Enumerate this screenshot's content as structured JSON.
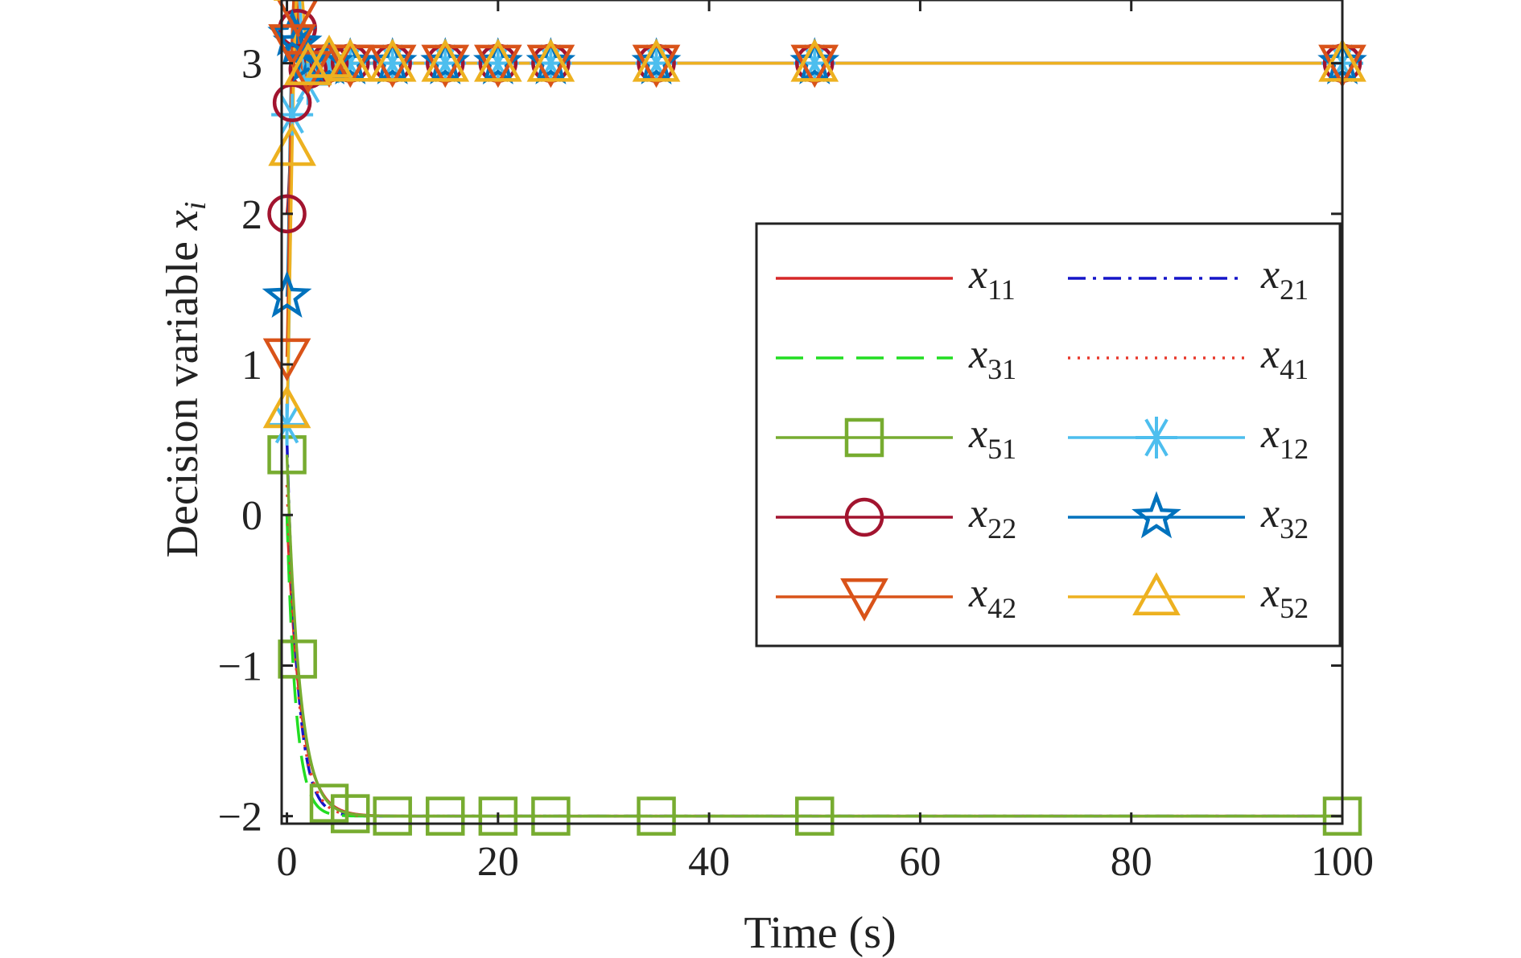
{
  "chart_data": {
    "type": "line",
    "xlabel": "Time (s)",
    "ylabel_main": "Decision variable ",
    "ylabel_var": "x",
    "ylabel_sub": "i",
    "xlim": [
      -0.5,
      100
    ],
    "ylim": [
      -2.05,
      3.42
    ],
    "xticks": [
      0,
      20,
      40,
      60,
      80,
      100
    ],
    "yticks": [
      -2,
      -1,
      0,
      1,
      2,
      3
    ],
    "xtick_labels": [
      "0",
      "20",
      "40",
      "60",
      "80",
      "100"
    ],
    "ytick_labels": [
      "−2",
      "−1",
      "0",
      "1",
      "2",
      "3"
    ],
    "grid": false,
    "legend_position": "center-right",
    "series": [
      {
        "name": "x",
        "sub": "11",
        "color": "#d62728",
        "dash": "solid",
        "marker": "none",
        "target": -2,
        "start": 0.0,
        "overshoot": 0,
        "tau": 1.3
      },
      {
        "name": "x",
        "sub": "21",
        "color": "#1515c8",
        "dash": "dashdot",
        "marker": "none",
        "target": -2,
        "start": 0.5,
        "overshoot": 0,
        "tau": 1.0
      },
      {
        "name": "x",
        "sub": "31",
        "color": "#22dd22",
        "dash": "dashed",
        "marker": "none",
        "target": -2,
        "start": 0.0,
        "overshoot": 0,
        "tau": 0.85
      },
      {
        "name": "x",
        "sub": "41",
        "color": "#e8392b",
        "dash": "dotted",
        "marker": "none",
        "target": -2,
        "start": 0.2,
        "overshoot": 0,
        "tau": 1.1
      },
      {
        "name": "x",
        "sub": "51",
        "color": "#77ac30",
        "dash": "solid",
        "marker": "square",
        "target": -2,
        "start": 0.4,
        "overshoot": 0,
        "tau": 1.2
      },
      {
        "name": "x",
        "sub": "12",
        "color": "#4dbeee",
        "dash": "solid",
        "marker": "asterisk",
        "target": 3,
        "start": 0.6,
        "overshoot": 0.35,
        "tau": 0.7
      },
      {
        "name": "x",
        "sub": "22",
        "color": "#a2142f",
        "dash": "solid",
        "marker": "circle",
        "target": 3,
        "start": 2.0,
        "overshoot": 0.15,
        "tau": 0.8
      },
      {
        "name": "x",
        "sub": "32",
        "color": "#0072bd",
        "dash": "solid",
        "marker": "star",
        "target": 3,
        "start": 1.45,
        "overshoot": 0.25,
        "tau": 0.5
      },
      {
        "name": "x",
        "sub": "42",
        "color": "#d95319",
        "dash": "solid",
        "marker": "triangle-down",
        "target": 3,
        "start": 1.05,
        "overshoot": 0.1,
        "tau": 0.6
      },
      {
        "name": "x",
        "sub": "52",
        "color": "#edb120",
        "dash": "solid",
        "marker": "triangle-up",
        "target": 3,
        "start": 0.7,
        "overshoot": 0.1,
        "tau": 0.9
      }
    ],
    "marker_times_upper": [
      0,
      0.5,
      1,
      2,
      4,
      6,
      10,
      15,
      20,
      25,
      35,
      50,
      100
    ],
    "marker_times_lower": [
      0,
      1,
      4,
      6,
      10,
      15,
      20,
      25,
      35,
      50,
      100
    ]
  }
}
